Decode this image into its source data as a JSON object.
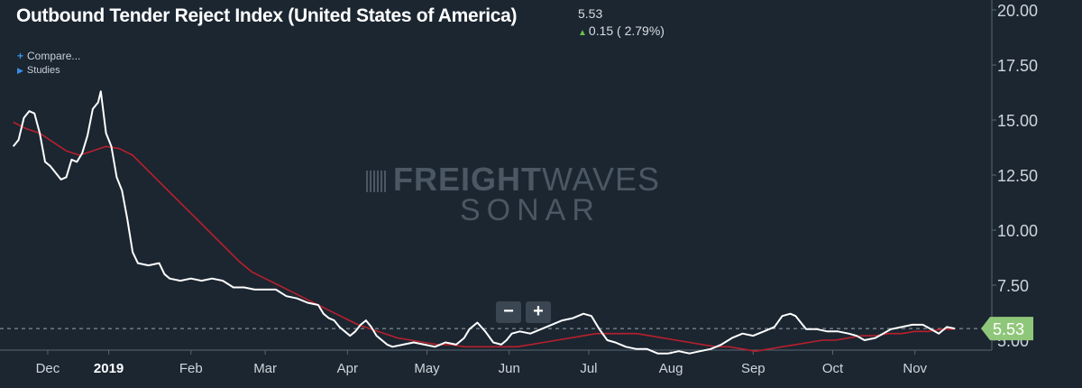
{
  "header": {
    "title": "Outbound Tender Reject Index (United States of America)",
    "last_value": "5.53",
    "change": "0.15 ( 2.79%)",
    "up_color": "#6cc04a"
  },
  "menu": {
    "compare_label": "Compare...",
    "compare_icon": "plus-icon",
    "studies_label": "Studies",
    "studies_icon": "triangle-right-icon"
  },
  "watermark": {
    "brand_bold": "FREIGHT",
    "brand_thin": "WAVES",
    "product": "SONAR"
  },
  "zoom": {
    "out_label": "−",
    "in_label": "+"
  },
  "colors": {
    "background": "#1b2631",
    "index_line": "#ffffff",
    "moving_average": "#b8202c",
    "last_value_badge": "#8fc77a"
  },
  "chart_data": {
    "type": "line",
    "title": "Outbound Tender Reject Index (United States of America)",
    "xlabel": "",
    "ylabel": "",
    "ylim": [
      4.55,
      20.45
    ],
    "y_ticks": [
      "20.00",
      "17.50",
      "15.00",
      "12.50",
      "10.00",
      "7.50",
      "5.00"
    ],
    "x_ticks": [
      {
        "label": "Dec",
        "day": 8,
        "year": false
      },
      {
        "label": "2019",
        "day": 31,
        "year": true
      },
      {
        "label": "Feb",
        "day": 62,
        "year": false
      },
      {
        "label": "Mar",
        "day": 90,
        "year": false
      },
      {
        "label": "Apr",
        "day": 121,
        "year": false
      },
      {
        "label": "May",
        "day": 151,
        "year": false
      },
      {
        "label": "Jun",
        "day": 182,
        "year": false
      },
      {
        "label": "Jul",
        "day": 212,
        "year": false
      },
      {
        "label": "Aug",
        "day": 243,
        "year": false
      },
      {
        "label": "Sep",
        "day": 274,
        "year": false
      },
      {
        "label": "Oct",
        "day": 304,
        "year": false
      },
      {
        "label": "Nov",
        "day": 335,
        "year": false
      }
    ],
    "grid": false,
    "last_value": 5.53,
    "last_value_label": "5.53",
    "series": [
      {
        "name": "",
        "color": "#ffffff",
        "points": [
          [
            -5,
            13.8
          ],
          [
            -3,
            14.1
          ],
          [
            -1,
            15.1
          ],
          [
            1,
            15.4
          ],
          [
            3,
            15.3
          ],
          [
            5,
            14.4
          ],
          [
            7,
            13.1
          ],
          [
            9,
            12.9
          ],
          [
            11,
            12.6
          ],
          [
            13,
            12.3
          ],
          [
            15,
            12.4
          ],
          [
            17,
            13.2
          ],
          [
            19,
            13.1
          ],
          [
            21,
            13.5
          ],
          [
            23,
            14.3
          ],
          [
            25,
            15.5
          ],
          [
            27,
            15.8
          ],
          [
            28,
            16.3
          ],
          [
            30,
            14.4
          ],
          [
            32,
            13.8
          ],
          [
            34,
            12.4
          ],
          [
            36,
            11.8
          ],
          [
            38,
            10.5
          ],
          [
            40,
            9.0
          ],
          [
            42,
            8.5
          ],
          [
            46,
            8.4
          ],
          [
            50,
            8.5
          ],
          [
            52,
            8.0
          ],
          [
            54,
            7.8
          ],
          [
            58,
            7.7
          ],
          [
            62,
            7.8
          ],
          [
            66,
            7.7
          ],
          [
            70,
            7.8
          ],
          [
            74,
            7.7
          ],
          [
            78,
            7.4
          ],
          [
            82,
            7.4
          ],
          [
            86,
            7.3
          ],
          [
            90,
            7.3
          ],
          [
            94,
            7.3
          ],
          [
            98,
            7.0
          ],
          [
            102,
            6.9
          ],
          [
            106,
            6.7
          ],
          [
            110,
            6.6
          ],
          [
            112,
            6.2
          ],
          [
            114,
            6.0
          ],
          [
            116,
            5.9
          ],
          [
            118,
            5.6
          ],
          [
            120,
            5.4
          ],
          [
            122,
            5.2
          ],
          [
            124,
            5.4
          ],
          [
            126,
            5.7
          ],
          [
            128,
            5.9
          ],
          [
            130,
            5.6
          ],
          [
            132,
            5.2
          ],
          [
            134,
            5.0
          ],
          [
            136,
            4.8
          ],
          [
            138,
            4.7
          ],
          [
            142,
            4.8
          ],
          [
            146,
            4.9
          ],
          [
            150,
            4.8
          ],
          [
            154,
            4.7
          ],
          [
            158,
            4.9
          ],
          [
            162,
            4.8
          ],
          [
            165,
            5.1
          ],
          [
            167,
            5.5
          ],
          [
            170,
            5.8
          ],
          [
            173,
            5.4
          ],
          [
            176,
            4.9
          ],
          [
            179,
            4.8
          ],
          [
            181,
            5.0
          ],
          [
            183,
            5.3
          ],
          [
            186,
            5.4
          ],
          [
            190,
            5.3
          ],
          [
            194,
            5.5
          ],
          [
            198,
            5.7
          ],
          [
            202,
            5.9
          ],
          [
            206,
            6.0
          ],
          [
            210,
            6.2
          ],
          [
            213,
            6.1
          ],
          [
            216,
            5.5
          ],
          [
            219,
            5.0
          ],
          [
            222,
            4.9
          ],
          [
            226,
            4.7
          ],
          [
            230,
            4.6
          ],
          [
            234,
            4.6
          ],
          [
            238,
            4.4
          ],
          [
            242,
            4.4
          ],
          [
            246,
            4.5
          ],
          [
            250,
            4.4
          ],
          [
            254,
            4.5
          ],
          [
            258,
            4.6
          ],
          [
            262,
            4.8
          ],
          [
            266,
            5.1
          ],
          [
            270,
            5.3
          ],
          [
            274,
            5.2
          ],
          [
            278,
            5.4
          ],
          [
            282,
            5.6
          ],
          [
            285,
            6.1
          ],
          [
            288,
            6.2
          ],
          [
            290,
            6.1
          ],
          [
            292,
            5.8
          ],
          [
            294,
            5.5
          ],
          [
            298,
            5.5
          ],
          [
            302,
            5.4
          ],
          [
            306,
            5.4
          ],
          [
            310,
            5.3
          ],
          [
            313,
            5.2
          ],
          [
            316,
            5.0
          ],
          [
            320,
            5.1
          ],
          [
            323,
            5.3
          ],
          [
            326,
            5.5
          ],
          [
            330,
            5.6
          ],
          [
            334,
            5.7
          ],
          [
            338,
            5.7
          ],
          [
            341,
            5.5
          ],
          [
            344,
            5.3
          ],
          [
            347,
            5.6
          ],
          [
            350,
            5.53
          ]
        ]
      },
      {
        "name": "",
        "color": "#b8202c",
        "points": [
          [
            -5,
            14.9
          ],
          [
            0,
            14.6
          ],
          [
            5,
            14.4
          ],
          [
            10,
            14.0
          ],
          [
            15,
            13.6
          ],
          [
            20,
            13.4
          ],
          [
            25,
            13.6
          ],
          [
            30,
            13.8
          ],
          [
            35,
            13.7
          ],
          [
            40,
            13.4
          ],
          [
            45,
            12.8
          ],
          [
            50,
            12.2
          ],
          [
            55,
            11.6
          ],
          [
            60,
            11.0
          ],
          [
            65,
            10.4
          ],
          [
            70,
            9.8
          ],
          [
            75,
            9.2
          ],
          [
            80,
            8.6
          ],
          [
            85,
            8.1
          ],
          [
            90,
            7.8
          ],
          [
            95,
            7.5
          ],
          [
            100,
            7.2
          ],
          [
            105,
            6.9
          ],
          [
            110,
            6.6
          ],
          [
            115,
            6.3
          ],
          [
            120,
            6.0
          ],
          [
            125,
            5.7
          ],
          [
            130,
            5.5
          ],
          [
            135,
            5.3
          ],
          [
            140,
            5.1
          ],
          [
            145,
            5.0
          ],
          [
            150,
            4.9
          ],
          [
            155,
            4.8
          ],
          [
            160,
            4.8
          ],
          [
            165,
            4.7
          ],
          [
            170,
            4.7
          ],
          [
            175,
            4.7
          ],
          [
            180,
            4.7
          ],
          [
            185,
            4.7
          ],
          [
            190,
            4.8
          ],
          [
            195,
            4.9
          ],
          [
            200,
            5.0
          ],
          [
            205,
            5.1
          ],
          [
            210,
            5.2
          ],
          [
            215,
            5.3
          ],
          [
            220,
            5.3
          ],
          [
            225,
            5.3
          ],
          [
            230,
            5.3
          ],
          [
            235,
            5.2
          ],
          [
            240,
            5.1
          ],
          [
            245,
            5.0
          ],
          [
            250,
            4.9
          ],
          [
            255,
            4.8
          ],
          [
            260,
            4.7
          ],
          [
            265,
            4.7
          ],
          [
            270,
            4.6
          ],
          [
            275,
            4.5
          ],
          [
            280,
            4.6
          ],
          [
            285,
            4.7
          ],
          [
            290,
            4.8
          ],
          [
            295,
            4.9
          ],
          [
            300,
            5.0
          ],
          [
            305,
            5.0
          ],
          [
            310,
            5.1
          ],
          [
            315,
            5.2
          ],
          [
            320,
            5.2
          ],
          [
            325,
            5.3
          ],
          [
            330,
            5.3
          ],
          [
            335,
            5.4
          ],
          [
            340,
            5.4
          ],
          [
            345,
            5.5
          ],
          [
            350,
            5.5
          ]
        ]
      }
    ]
  }
}
